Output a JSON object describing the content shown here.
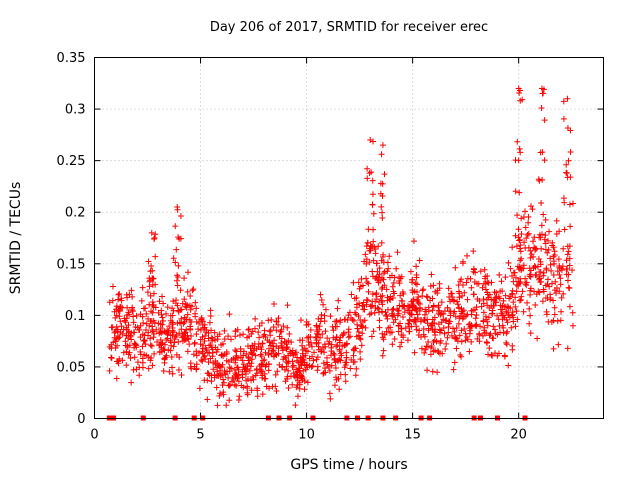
{
  "chart_data": {
    "type": "scatter",
    "title": "Day 206 of 2017, SRMTID for receiver erec",
    "xlabel": "GPS time / hours",
    "ylabel": "SRMTID / TECUs",
    "xlim": [
      0,
      24
    ],
    "ylim": [
      0,
      0.35
    ],
    "x_ticks": [
      0,
      5,
      10,
      15,
      20
    ],
    "x_tick_labels": [
      "0",
      "5",
      "10",
      "15",
      "20"
    ],
    "y_ticks": [
      0,
      0.05,
      0.1,
      0.15,
      0.2,
      0.25,
      0.3,
      0.35
    ],
    "y_tick_labels": [
      "0",
      "0.05",
      "0.1",
      "0.15",
      "0.2",
      "0.25",
      "0.3",
      "0.35"
    ],
    "grid": true,
    "marker": "+",
    "color": "#ff0000",
    "trend": [
      [
        0.7,
        0.085
      ],
      [
        1.5,
        0.085
      ],
      [
        2.2,
        0.08
      ],
      [
        2.7,
        0.1
      ],
      [
        3.0,
        0.085
      ],
      [
        3.6,
        0.08
      ],
      [
        4.0,
        0.09
      ],
      [
        4.5,
        0.095
      ],
      [
        5.0,
        0.07
      ],
      [
        5.5,
        0.06
      ],
      [
        6.0,
        0.05
      ],
      [
        6.5,
        0.055
      ],
      [
        7.0,
        0.05
      ],
      [
        7.5,
        0.06
      ],
      [
        8.0,
        0.06
      ],
      [
        8.5,
        0.07
      ],
      [
        9.0,
        0.065
      ],
      [
        9.5,
        0.05
      ],
      [
        10.0,
        0.06
      ],
      [
        10.5,
        0.075
      ],
      [
        11.0,
        0.07
      ],
      [
        11.5,
        0.065
      ],
      [
        12.0,
        0.08
      ],
      [
        12.5,
        0.09
      ],
      [
        13.0,
        0.15
      ],
      [
        13.3,
        0.13
      ],
      [
        13.6,
        0.11
      ],
      [
        14.0,
        0.11
      ],
      [
        14.5,
        0.1
      ],
      [
        15.0,
        0.11
      ],
      [
        15.5,
        0.1
      ],
      [
        16.0,
        0.09
      ],
      [
        16.5,
        0.095
      ],
      [
        17.0,
        0.1
      ],
      [
        17.5,
        0.105
      ],
      [
        18.0,
        0.11
      ],
      [
        18.5,
        0.1
      ],
      [
        19.0,
        0.09
      ],
      [
        19.5,
        0.1
      ],
      [
        20.0,
        0.15
      ],
      [
        20.5,
        0.14
      ],
      [
        21.0,
        0.15
      ],
      [
        21.5,
        0.13
      ],
      [
        22.0,
        0.14
      ],
      [
        22.6,
        0.14
      ]
    ],
    "peaks": [
      {
        "x": 2.7,
        "y": 0.18
      },
      {
        "x": 3.9,
        "y": 0.205
      },
      {
        "x": 13.0,
        "y": 0.27
      },
      {
        "x": 13.6,
        "y": 0.265
      },
      {
        "x": 20.0,
        "y": 0.32
      },
      {
        "x": 21.1,
        "y": 0.32
      },
      {
        "x": 22.3,
        "y": 0.31
      }
    ],
    "data_gaps_at_zero": [
      0.7,
      0.9,
      2.3,
      3.8,
      4.7,
      5.1,
      8.2,
      8.7,
      9.2,
      10.3,
      11.9,
      12.4,
      12.9,
      13.6,
      14.2,
      15.4,
      15.8,
      17.9,
      18.2,
      19.0,
      20.3
    ]
  }
}
